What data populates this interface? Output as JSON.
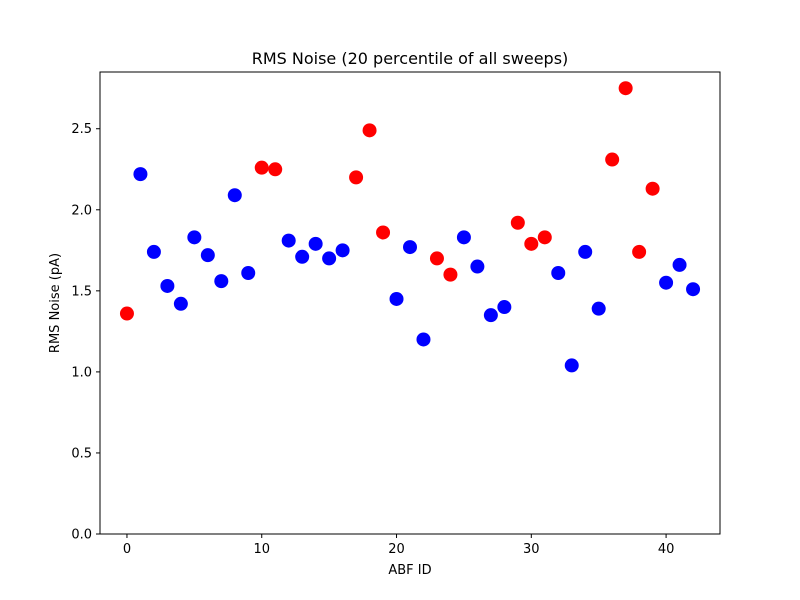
{
  "chart_data": {
    "type": "scatter",
    "title": "RMS Noise (20 percentile of all sweeps)",
    "xlabel": "ABF ID",
    "ylabel": "RMS Noise (pA)",
    "xlim": [
      -2,
      44
    ],
    "ylim": [
      0,
      2.85
    ],
    "x_ticks": [
      0,
      10,
      20,
      30,
      40
    ],
    "y_ticks": [
      0.0,
      0.5,
      1.0,
      1.5,
      2.0,
      2.5
    ],
    "x_tick_labels": [
      "0",
      "10",
      "20",
      "30",
      "40"
    ],
    "y_tick_labels": [
      "0.0",
      "0.5",
      "1.0",
      "1.5",
      "2.0",
      "2.5"
    ],
    "grid": false,
    "colors": {
      "blue": "#0000ff",
      "red": "#ff0000"
    },
    "points": [
      {
        "x": 0,
        "y": 1.36,
        "color": "red"
      },
      {
        "x": 1,
        "y": 2.22,
        "color": "blue"
      },
      {
        "x": 2,
        "y": 1.74,
        "color": "blue"
      },
      {
        "x": 3,
        "y": 1.53,
        "color": "blue"
      },
      {
        "x": 4,
        "y": 1.42,
        "color": "blue"
      },
      {
        "x": 5,
        "y": 1.83,
        "color": "blue"
      },
      {
        "x": 6,
        "y": 1.72,
        "color": "blue"
      },
      {
        "x": 7,
        "y": 1.56,
        "color": "blue"
      },
      {
        "x": 8,
        "y": 2.09,
        "color": "blue"
      },
      {
        "x": 9,
        "y": 1.61,
        "color": "blue"
      },
      {
        "x": 10,
        "y": 2.26,
        "color": "red"
      },
      {
        "x": 11,
        "y": 2.25,
        "color": "red"
      },
      {
        "x": 12,
        "y": 1.81,
        "color": "blue"
      },
      {
        "x": 13,
        "y": 1.71,
        "color": "blue"
      },
      {
        "x": 14,
        "y": 1.79,
        "color": "blue"
      },
      {
        "x": 15,
        "y": 1.7,
        "color": "blue"
      },
      {
        "x": 16,
        "y": 1.75,
        "color": "blue"
      },
      {
        "x": 17,
        "y": 2.2,
        "color": "red"
      },
      {
        "x": 18,
        "y": 2.49,
        "color": "red"
      },
      {
        "x": 19,
        "y": 1.86,
        "color": "red"
      },
      {
        "x": 20,
        "y": 1.45,
        "color": "blue"
      },
      {
        "x": 21,
        "y": 1.77,
        "color": "blue"
      },
      {
        "x": 22,
        "y": 1.2,
        "color": "blue"
      },
      {
        "x": 23,
        "y": 1.7,
        "color": "red"
      },
      {
        "x": 24,
        "y": 1.6,
        "color": "red"
      },
      {
        "x": 25,
        "y": 1.83,
        "color": "blue"
      },
      {
        "x": 26,
        "y": 1.65,
        "color": "blue"
      },
      {
        "x": 27,
        "y": 1.35,
        "color": "blue"
      },
      {
        "x": 28,
        "y": 1.4,
        "color": "blue"
      },
      {
        "x": 29,
        "y": 1.92,
        "color": "red"
      },
      {
        "x": 30,
        "y": 1.79,
        "color": "red"
      },
      {
        "x": 31,
        "y": 1.83,
        "color": "red"
      },
      {
        "x": 32,
        "y": 1.61,
        "color": "blue"
      },
      {
        "x": 33,
        "y": 1.04,
        "color": "blue"
      },
      {
        "x": 34,
        "y": 1.74,
        "color": "blue"
      },
      {
        "x": 35,
        "y": 1.39,
        "color": "blue"
      },
      {
        "x": 36,
        "y": 2.31,
        "color": "red"
      },
      {
        "x": 37,
        "y": 2.75,
        "color": "red"
      },
      {
        "x": 38,
        "y": 1.74,
        "color": "red"
      },
      {
        "x": 39,
        "y": 2.13,
        "color": "red"
      },
      {
        "x": 40,
        "y": 1.55,
        "color": "blue"
      },
      {
        "x": 41,
        "y": 1.66,
        "color": "blue"
      },
      {
        "x": 42,
        "y": 1.51,
        "color": "blue"
      }
    ]
  }
}
